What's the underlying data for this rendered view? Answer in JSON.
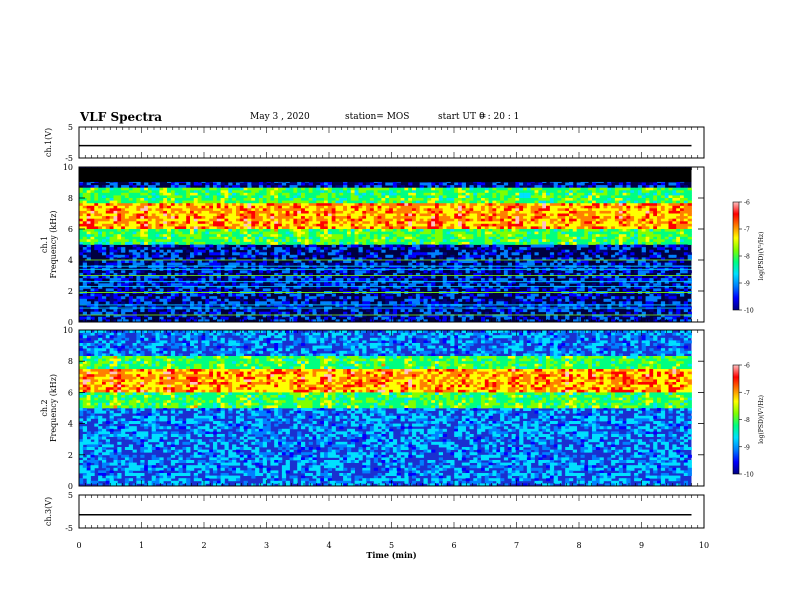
{
  "header": {
    "title": "VLF Spectra",
    "date": "May 3  , 2020",
    "station": "station= MOS",
    "start_label": "start  UT  =",
    "start_value": "0  : 20 : 1"
  },
  "chart_data": [
    {
      "type": "line",
      "panel": "ch1-waveform",
      "ylabel": "ch.1(V)",
      "ylim": [
        -5,
        5
      ],
      "yticks": [
        "5",
        "-5"
      ],
      "xlim": [
        0,
        10
      ],
      "series": [
        {
          "values": [
            -1,
            -1
          ]
        }
      ]
    },
    {
      "type": "heatmap",
      "panel": "ch1-spectrogram",
      "ylabel": "ch.1\nFrequency (kHz)",
      "ylabel_line1": "ch.1",
      "ylabel_line2": "Frequency (kHz)",
      "ylim": [
        0,
        10
      ],
      "yticks": [
        "0",
        "2",
        "4",
        "6",
        "8",
        "10"
      ],
      "xlim": [
        0,
        9.8
      ],
      "description_levels": {
        "band_low_khz": [
          5.0,
          8.7
        ],
        "band_peak_khz": [
          6.0,
          7.6
        ],
        "cutoff_khz": 9.0
      },
      "colorbar": {
        "label": "log(PSD)(V²/Hz)",
        "ticks": [
          "-6",
          "-7",
          "-8",
          "-9",
          "-10"
        ],
        "range": [
          -10,
          -6
        ]
      }
    },
    {
      "type": "heatmap",
      "panel": "ch2-spectrogram",
      "ylabel": "ch.2\nFrequency (kHz)",
      "ylabel_line1": "ch.2",
      "ylabel_line2": "Frequency (kHz)",
      "ylim": [
        0,
        10
      ],
      "yticks": [
        "0",
        "2",
        "4",
        "6",
        "8",
        "10"
      ],
      "xlim": [
        0,
        9.8
      ],
      "description_levels": {
        "band_low_khz": [
          5.0,
          8.3
        ],
        "band_peak_khz": [
          6.0,
          7.5
        ]
      },
      "colorbar": {
        "label": "log(PSD)(V²/Hz)",
        "ticks": [
          "-6",
          "-7",
          "-8",
          "-9",
          "-10"
        ],
        "range": [
          -10,
          -6
        ]
      }
    },
    {
      "type": "line",
      "panel": "ch3-waveform",
      "ylabel": "ch.3(V)",
      "ylim": [
        -5,
        5
      ],
      "yticks": [
        "5",
        "-5"
      ],
      "xlim": [
        0,
        10
      ],
      "series": [
        {
          "values": [
            -1,
            -1
          ]
        }
      ]
    }
  ],
  "xaxis": {
    "label": "Time  (min)",
    "ticks": [
      "0",
      "1",
      "2",
      "3",
      "4",
      "5",
      "6",
      "7",
      "8",
      "9",
      "10"
    ]
  },
  "colors": {
    "colormap": [
      "#000080",
      "#0000ff",
      "#0080ff",
      "#00e0ff",
      "#00ff80",
      "#80ff00",
      "#ffff00",
      "#ff8000",
      "#ff0000",
      "#ffc0c0"
    ]
  }
}
